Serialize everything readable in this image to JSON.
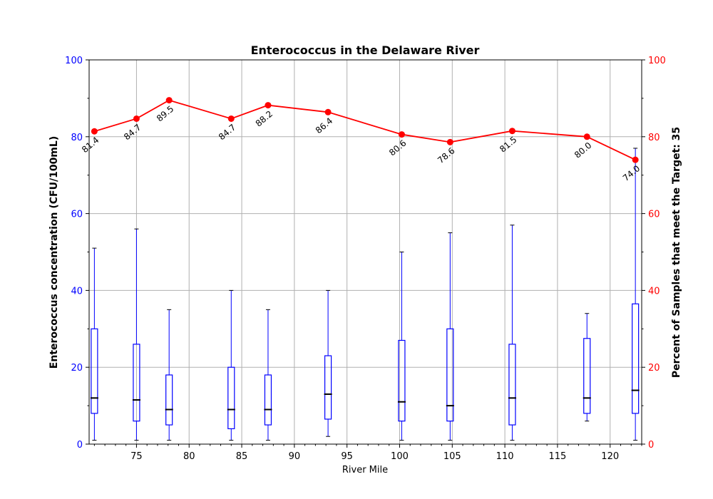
{
  "chart_data": {
    "type": "boxplot-line",
    "title": "Enterococcus in the Delaware River",
    "xlabel": "River Mile",
    "ylabel_left": "Enterococcus concentration (CFU/100mL)",
    "ylabel_right": "Percent of Samples that meet the Target: 35",
    "xlim": [
      70.5,
      123
    ],
    "ylim_left": [
      0,
      100
    ],
    "ylim_right": [
      0,
      100
    ],
    "x_ticks": [
      75,
      80,
      85,
      90,
      95,
      100,
      105,
      110,
      115,
      120
    ],
    "x_tick_labels": [
      "75",
      "80",
      "85",
      "90",
      "95",
      "100",
      "105",
      "110",
      "115",
      "120"
    ],
    "y_ticks_left": [
      0,
      20,
      40,
      60,
      80,
      100
    ],
    "y_tick_labels_left": [
      "0",
      "20",
      "40",
      "60",
      "80",
      "100"
    ],
    "y_ticks_right": [
      0,
      20,
      40,
      60,
      80,
      100
    ],
    "y_tick_labels_right": [
      "0",
      "20",
      "40",
      "60",
      "80",
      "100"
    ],
    "grid": true,
    "colors": {
      "box": "#0000ff",
      "median": "#000000",
      "line": "#ff0000",
      "left_axis": "#0000ff",
      "right_axis": "#ff0000",
      "grid": "#b0b0b0"
    },
    "boxes": [
      {
        "x": 71.0,
        "min": 1,
        "q1": 8,
        "median": 12,
        "q3": 30,
        "max": 51
      },
      {
        "x": 75.0,
        "min": 1,
        "q1": 6,
        "median": 11.5,
        "q3": 26,
        "max": 56
      },
      {
        "x": 78.1,
        "min": 1,
        "q1": 5,
        "median": 9,
        "q3": 18,
        "max": 35
      },
      {
        "x": 84.0,
        "min": 1,
        "q1": 4,
        "median": 9,
        "q3": 20,
        "max": 40
      },
      {
        "x": 87.5,
        "min": 1,
        "q1": 5,
        "median": 9,
        "q3": 18,
        "max": 35
      },
      {
        "x": 93.2,
        "min": 2,
        "q1": 6.5,
        "median": 13,
        "q3": 23,
        "max": 40
      },
      {
        "x": 100.2,
        "min": 1,
        "q1": 6,
        "median": 11,
        "q3": 27,
        "max": 50
      },
      {
        "x": 104.8,
        "min": 1,
        "q1": 6,
        "median": 10,
        "q3": 30,
        "max": 55
      },
      {
        "x": 110.7,
        "min": 1,
        "q1": 5,
        "median": 12,
        "q3": 26,
        "max": 57
      },
      {
        "x": 117.8,
        "min": 6,
        "q1": 8,
        "median": 12,
        "q3": 27.5,
        "max": 34
      },
      {
        "x": 122.4,
        "min": 1,
        "q1": 8,
        "median": 14,
        "q3": 36.5,
        "max": 77
      }
    ],
    "percent_series": {
      "x": [
        71.0,
        75.0,
        78.1,
        84.0,
        87.5,
        93.2,
        100.2,
        104.8,
        110.7,
        117.8,
        122.4
      ],
      "values": [
        81.4,
        84.7,
        89.5,
        84.7,
        88.2,
        86.4,
        80.6,
        78.6,
        81.5,
        80.0,
        74.0
      ],
      "labels": [
        "81.4",
        "84.7",
        "89.5",
        "84.7",
        "88.2",
        "86.4",
        "80.6",
        "78.6",
        "81.5",
        "80.0",
        "74.0"
      ]
    }
  }
}
